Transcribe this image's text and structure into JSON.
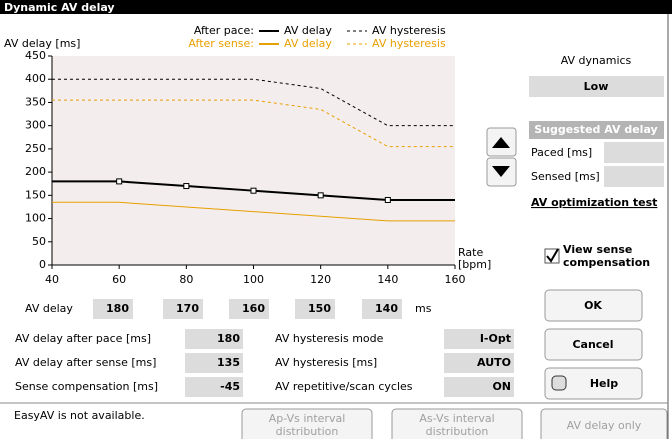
{
  "window_title": "Dynamic AV delay",
  "chart_data": {
    "type": "line",
    "ylabel": "AV delay [ms]",
    "xlabel_lines": [
      "Rate",
      "[bpm]"
    ],
    "x": [
      40,
      60,
      80,
      100,
      120,
      140,
      160
    ],
    "xlim": [
      40,
      160
    ],
    "xticks": [
      40,
      60,
      80,
      100,
      120,
      140,
      160
    ],
    "ylim": [
      0,
      450
    ],
    "yticks": [
      0,
      50,
      100,
      150,
      200,
      250,
      300,
      350,
      400,
      450
    ],
    "series": [
      {
        "group": "After pace:",
        "name": "AV delay",
        "color": "#000000",
        "dashed": false,
        "values": [
          180,
          180,
          170,
          160,
          150,
          140,
          140
        ]
      },
      {
        "name": "AV hysteresis",
        "color": "#000000",
        "dashed": true,
        "values": [
          400,
          400,
          400,
          400,
          380,
          300,
          300
        ]
      },
      {
        "group": "After sense:",
        "name": "AV delay",
        "color": "#e8a000",
        "dashed": false,
        "values": [
          135,
          135,
          125,
          115,
          105,
          95,
          95
        ]
      },
      {
        "name": "AV hysteresis",
        "color": "#e8a000",
        "dashed": true,
        "values": [
          355,
          355,
          355,
          355,
          335,
          255,
          255
        ]
      }
    ]
  },
  "av_row": {
    "label": "AV delay",
    "values": [
      180,
      170,
      160,
      150,
      140
    ],
    "unit": "ms"
  },
  "params_left": [
    {
      "label": "AV delay after pace [ms]",
      "value": 180
    },
    {
      "label": "AV delay after sense [ms]",
      "value": 135
    },
    {
      "label": "Sense compensation [ms]",
      "value": -45
    }
  ],
  "params_mid": [
    {
      "label": "AV hysteresis mode",
      "value": "I-Opt"
    },
    {
      "label": "AV hysteresis [ms]",
      "value": "AUTO"
    },
    {
      "label": "AV repetitive/scan cycles",
      "value": "ON"
    }
  ],
  "side": {
    "dynamics_label": "AV dynamics",
    "dynamics_value": "Low",
    "suggested_title": "Suggested AV delay",
    "paced_label": "Paced [ms]",
    "sensed_label": "Sensed [ms]",
    "optimization_link": "AV optimization test",
    "checkbox_lines": [
      "View sense",
      "compensation"
    ]
  },
  "buttons": {
    "ok": "OK",
    "cancel": "Cancel",
    "help": "Help"
  },
  "footer": {
    "status": "EasyAV is not available.",
    "apvs_lines": [
      "Ap-Vs interval",
      "distribution"
    ],
    "asvs_lines": [
      "As-Vs interval",
      "distribution"
    ],
    "av_only": "AV delay only"
  }
}
